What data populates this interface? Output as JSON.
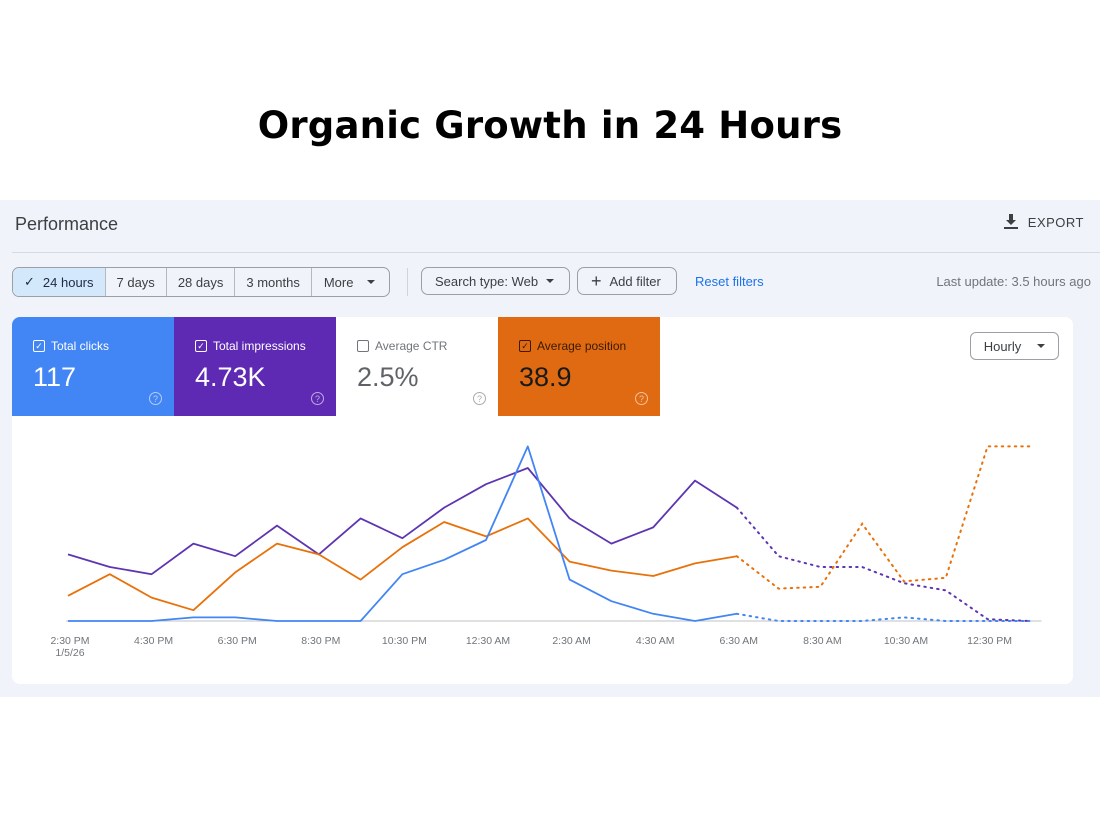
{
  "headline": "Organic Growth in 24 Hours",
  "header": {
    "title": "Performance",
    "export_label": "EXPORT",
    "export_icon": "download-icon"
  },
  "filters": {
    "ranges": [
      {
        "label": "24 hours",
        "active": true
      },
      {
        "label": "7 days",
        "active": false
      },
      {
        "label": "28 days",
        "active": false
      },
      {
        "label": "3 months",
        "active": false
      },
      {
        "label": "More",
        "active": false
      }
    ],
    "search_type": "Search type: Web",
    "add_filter": "Add filter",
    "reset": "Reset filters",
    "last_update": "Last update: 3.5 hours ago"
  },
  "metrics": [
    {
      "label": "Total clicks",
      "value": "117",
      "checked": true,
      "color": "#4285f4"
    },
    {
      "label": "Total impressions",
      "value": "4.73K",
      "checked": true,
      "color": "#5e2ab3"
    },
    {
      "label": "Average CTR",
      "value": "2.5%",
      "checked": false,
      "color": "#ffffff"
    },
    {
      "label": "Average position",
      "value": "38.9",
      "checked": true,
      "color": "#e06a12"
    }
  ],
  "granularity": "Hourly",
  "chart_data": {
    "type": "line",
    "x_tick_labels": [
      "2:30 PM",
      "4:30 PM",
      "6:30 PM",
      "8:30 PM",
      "10:30 PM",
      "12:30 AM",
      "2:30 AM",
      "4:30 AM",
      "6:30 AM",
      "8:30 AM",
      "10:30 AM",
      "12:30 PM"
    ],
    "x_first_sublabel": "1/5/26",
    "x_points": 24,
    "y_axis": "relative (no labels shown)",
    "ylim": [
      0,
      100
    ],
    "grid": false,
    "projected_from_index": 16,
    "series": [
      {
        "color": "#5e35b1",
        "values": [
          37,
          30,
          26,
          43,
          36,
          53,
          37,
          57,
          46,
          63,
          76,
          85,
          57,
          43,
          52,
          78,
          63,
          36,
          30,
          30,
          21,
          17,
          1,
          0
        ]
      },
      {
        "color": "#e8710a",
        "values": [
          14,
          26,
          13,
          6,
          27,
          43,
          37,
          23,
          41,
          55,
          47,
          57,
          33,
          28,
          25,
          32,
          36,
          18,
          19,
          54,
          22,
          24,
          97,
          97
        ]
      },
      {
        "color": "#4285f4",
        "values": [
          0,
          0,
          0,
          2,
          2,
          0,
          0,
          0,
          26,
          34,
          45,
          97,
          23,
          11,
          4,
          0,
          4,
          0,
          0,
          0,
          2,
          0,
          0,
          0
        ]
      }
    ]
  }
}
